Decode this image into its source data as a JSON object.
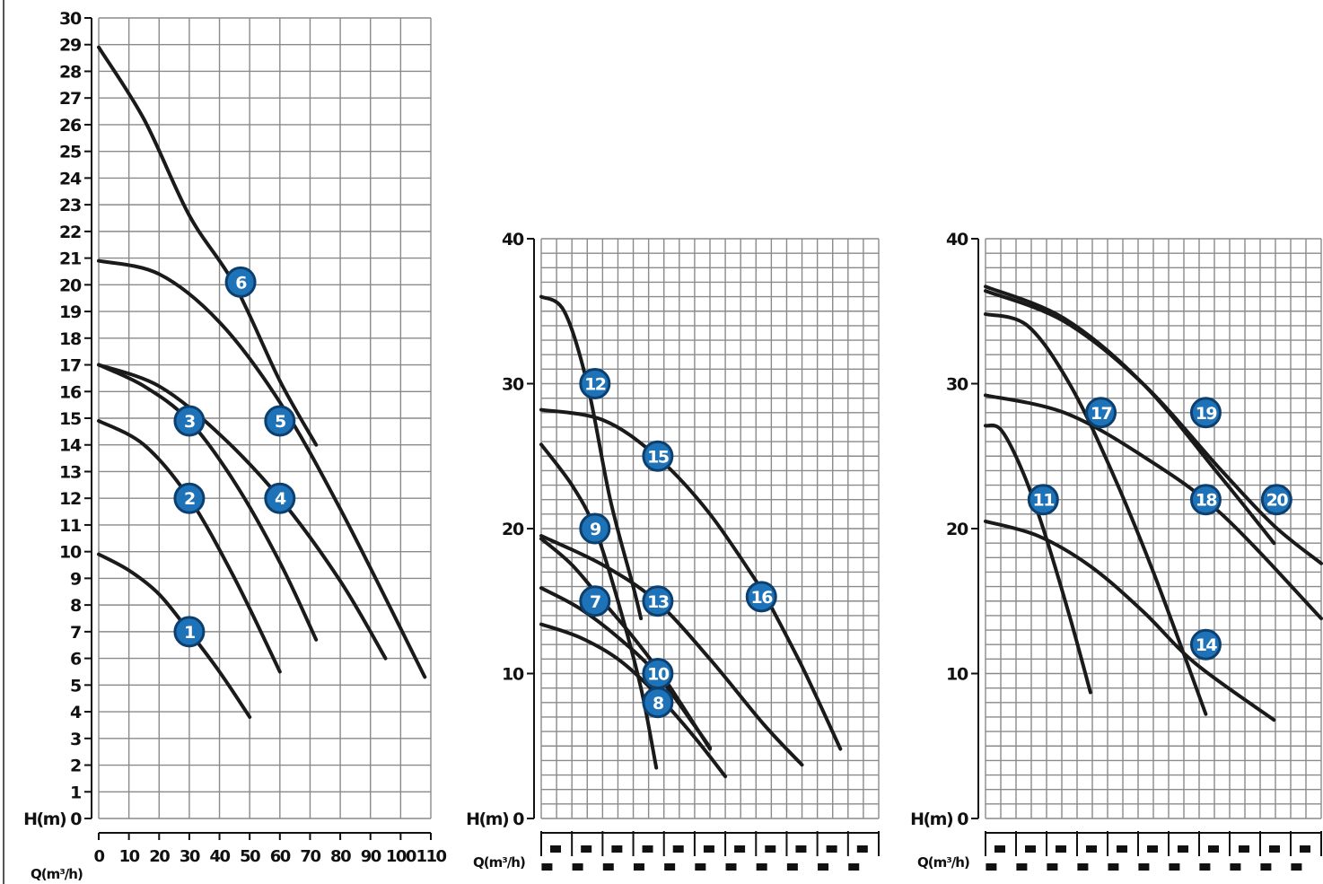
{
  "colors": {
    "grid": "#8a8a8a",
    "axis": "#111111",
    "curve": "#1a1a1a",
    "badge_fill": "#1d72b8",
    "badge_stroke": "#0d3f6e",
    "badge_text": "#ffffff",
    "background": "#ffffff"
  },
  "chart_data": [
    {
      "type": "line",
      "ylabel": "H(m)",
      "xlabel": "Q(m³/h)",
      "xlim": [
        0,
        110
      ],
      "ylim": [
        0,
        30
      ],
      "x_ticks": [
        "0",
        "10",
        "20",
        "30",
        "40",
        "50",
        "60",
        "70",
        "80",
        "90",
        "100",
        "110"
      ],
      "y_ticks": [
        "0",
        "1",
        "2",
        "3",
        "4",
        "5",
        "6",
        "7",
        "8",
        "9",
        "10",
        "11",
        "12",
        "13",
        "14",
        "15",
        "16",
        "17",
        "18",
        "19",
        "20",
        "21",
        "22",
        "23",
        "24",
        "25",
        "26",
        "27",
        "28",
        "29",
        "30"
      ],
      "grid": true,
      "series": [
        {
          "name": "1",
          "x": [
            0,
            10,
            20,
            30,
            40,
            50
          ],
          "y": [
            9.9,
            9.3,
            8.4,
            7.0,
            5.5,
            3.8
          ],
          "label_at": [
            30,
            7
          ]
        },
        {
          "name": "2",
          "x": [
            0,
            15,
            30,
            45,
            60
          ],
          "y": [
            14.9,
            14.0,
            12.0,
            9.0,
            5.5
          ],
          "label_at": [
            30,
            12
          ]
        },
        {
          "name": "3",
          "x": [
            0,
            15,
            30,
            45,
            60,
            72
          ],
          "y": [
            17.0,
            16.2,
            14.9,
            12.6,
            9.6,
            6.7
          ],
          "label_at": [
            30,
            14.9
          ]
        },
        {
          "name": "4",
          "x": [
            0,
            20,
            40,
            60,
            80,
            95
          ],
          "y": [
            17.0,
            16.2,
            14.4,
            12.0,
            8.9,
            6.0
          ],
          "label_at": [
            60,
            12
          ]
        },
        {
          "name": "5",
          "x": [
            0,
            20,
            40,
            60,
            80,
            108
          ],
          "y": [
            20.9,
            20.4,
            18.6,
            15.6,
            11.6,
            5.3
          ],
          "label_at": [
            60,
            14.9
          ]
        },
        {
          "name": "6",
          "x": [
            0,
            15,
            30,
            45,
            60,
            72
          ],
          "y": [
            28.9,
            26.2,
            22.6,
            20.0,
            16.4,
            14.0
          ],
          "label_at": [
            47,
            20.1
          ]
        }
      ]
    },
    {
      "type": "line",
      "ylabel": "H(m)",
      "xlabel": "Q(m³/h)",
      "xlim": [
        0,
        44
      ],
      "ylim": [
        0,
        40
      ],
      "y_ticks": [
        "0",
        "10",
        "20",
        "30",
        "40"
      ],
      "grid": true,
      "series": [
        {
          "name": "7",
          "x": [
            0,
            4,
            8,
            12,
            16,
            22
          ],
          "y": [
            19.3,
            17.5,
            15.0,
            12.5,
            9.7,
            4.8
          ],
          "label_at": [
            7,
            15
          ]
        },
        {
          "name": "8",
          "x": [
            0,
            5,
            10,
            15,
            20,
            24
          ],
          "y": [
            13.4,
            12.5,
            11.0,
            8.6,
            5.6,
            2.9
          ],
          "label_at": [
            15.2,
            8
          ]
        },
        {
          "name": "9",
          "x": [
            0,
            4,
            7,
            10,
            13,
            15
          ],
          "y": [
            25.8,
            23.0,
            20.0,
            15.0,
            9.0,
            3.5
          ],
          "label_at": [
            7,
            20
          ]
        },
        {
          "name": "10",
          "x": [
            0,
            5,
            10,
            15,
            20,
            22
          ],
          "y": [
            15.9,
            14.5,
            12.5,
            10.0,
            6.4,
            4.9
          ],
          "label_at": [
            15.2,
            10
          ]
        },
        {
          "name": "12",
          "x": [
            0,
            3,
            6,
            9,
            12,
            13
          ],
          "y": [
            36.0,
            35.0,
            30.0,
            22.0,
            16.0,
            13.8
          ],
          "label_at": [
            7,
            30
          ]
        },
        {
          "name": "13",
          "x": [
            0,
            8,
            15,
            22,
            29,
            34
          ],
          "y": [
            19.5,
            17.5,
            15.0,
            11.0,
            6.5,
            3.7
          ],
          "label_at": [
            15.2,
            15
          ]
        },
        {
          "name": "15",
          "x": [
            0,
            8,
            15,
            22,
            29
          ],
          "y": [
            28.2,
            27.5,
            25.0,
            21.0,
            15.6
          ],
          "label_at": [
            15.2,
            25
          ]
        },
        {
          "name": "16",
          "x": [
            29,
            34,
            39
          ],
          "y": [
            15.6,
            10.5,
            4.8
          ],
          "label_at": [
            28.7,
            15.3
          ]
        }
      ]
    },
    {
      "type": "line",
      "ylabel": "H(m)",
      "xlabel": "Q(m³/h)",
      "xlim": [
        0,
        64
      ],
      "ylim": [
        0,
        40
      ],
      "y_ticks": [
        "0",
        "10",
        "20",
        "30",
        "40"
      ],
      "grid": true,
      "series": [
        {
          "name": "11",
          "x": [
            0,
            3,
            7,
            11,
            16,
            20
          ],
          "y": [
            27.1,
            26.8,
            24.0,
            20.0,
            14.0,
            8.7
          ],
          "label_at": [
            11,
            22
          ]
        },
        {
          "name": "14",
          "x": [
            0,
            10,
            20,
            30,
            40,
            55
          ],
          "y": [
            20.5,
            19.5,
            17.4,
            14.3,
            10.7,
            6.8
          ],
          "label_at": [
            42,
            12
          ]
        },
        {
          "name": "17",
          "x": [
            0,
            8,
            16,
            24,
            32,
            42
          ],
          "y": [
            34.8,
            34.0,
            30.0,
            24.0,
            17.0,
            7.2
          ],
          "label_at": [
            22,
            28
          ]
        },
        {
          "name": "18",
          "x": [
            0,
            15,
            30,
            45,
            64
          ],
          "y": [
            29.2,
            28.0,
            25.0,
            21.0,
            13.8
          ],
          "label_at": [
            42,
            22
          ]
        },
        {
          "name": "19",
          "x": [
            0,
            15,
            30,
            45,
            55
          ],
          "y": [
            36.7,
            34.5,
            30.0,
            23.5,
            19.0
          ],
          "label_at": [
            42,
            28
          ]
        },
        {
          "name": "20",
          "x": [
            0,
            15,
            30,
            45,
            55,
            64
          ],
          "y": [
            36.4,
            34.3,
            30.0,
            24.0,
            20.2,
            17.6
          ],
          "label_at": [
            55.5,
            22
          ]
        }
      ]
    }
  ]
}
